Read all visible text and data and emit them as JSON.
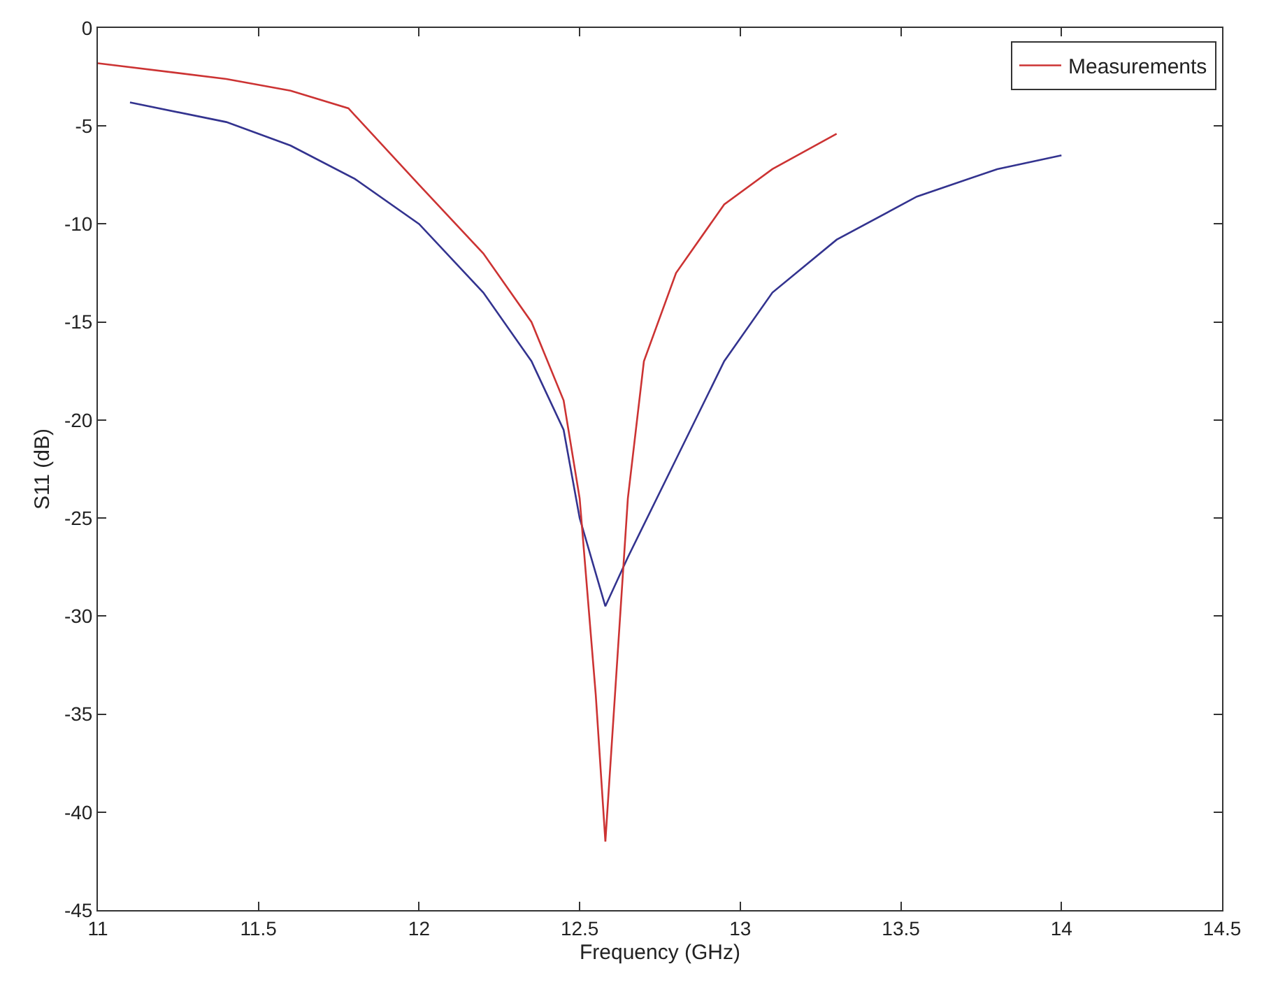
{
  "chart_data": {
    "type": "line",
    "xlabel": "Frequency (GHz)",
    "ylabel": "S11 (dB)",
    "xlim": [
      11,
      14.5
    ],
    "xticks": [
      11,
      11.5,
      12,
      12.5,
      13,
      13.5,
      14,
      14.5
    ],
    "ylim": [
      -45,
      0
    ],
    "yticks": [
      -45,
      -40,
      -35,
      -30,
      -25,
      -20,
      -15,
      -10,
      -5,
      0
    ],
    "grid": false,
    "legend": "top right",
    "marker": "none",
    "line_style": "solid",
    "series": [
      {
        "color": "#33338f",
        "x": [
          11.1,
          11.4,
          11.6,
          11.8,
          12.0,
          12.2,
          12.35,
          12.45,
          12.5,
          12.58,
          12.65,
          12.8,
          12.95,
          13.1,
          13.3,
          13.55,
          13.8,
          14.0
        ],
        "values": [
          -3.8,
          -4.8,
          -6.0,
          -7.7,
          -10.0,
          -13.5,
          -17.0,
          -20.5,
          -25.0,
          -29.5,
          -27.0,
          -22.0,
          -17.0,
          -13.5,
          -10.8,
          -8.6,
          -7.2,
          -6.5
        ]
      },
      {
        "name": "Measurements",
        "color": "#cc3333",
        "x": [
          11.0,
          11.4,
          11.6,
          11.78,
          12.0,
          12.2,
          12.35,
          12.45,
          12.5,
          12.55,
          12.58,
          12.61,
          12.65,
          12.7,
          12.8,
          12.95,
          13.1,
          13.3
        ],
        "values": [
          -1.8,
          -2.6,
          -3.2,
          -4.1,
          -8.0,
          -11.5,
          -15.0,
          -19.0,
          -24.0,
          -34.0,
          -41.5,
          -34.0,
          -24.0,
          -17.0,
          -12.5,
          -9.0,
          -7.2,
          -5.4
        ]
      }
    ]
  }
}
